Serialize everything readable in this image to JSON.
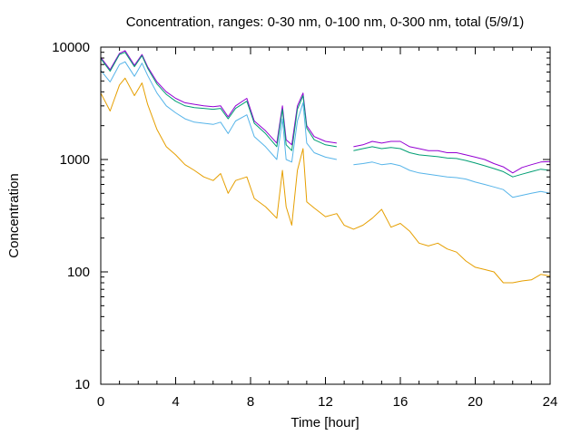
{
  "chart_data": {
    "type": "line",
    "title": "Concentration, ranges: 0-30 nm, 0-100 nm, 0-300 nm, total (5/9/1)",
    "xlabel": "Time [hour]",
    "ylabel": "Concentration",
    "xlim": [
      0,
      24
    ],
    "ylim": [
      10,
      10000
    ],
    "yscale": "log",
    "grid": false,
    "legend": "none",
    "x_ticks": [
      "0",
      "4",
      "8",
      "12",
      "16",
      "20",
      "24"
    ],
    "y_ticks": [
      "10",
      "100",
      "1000",
      "10000"
    ],
    "x": [
      0,
      0.5,
      1.0,
      1.3,
      1.8,
      2.2,
      2.5,
      3.0,
      3.5,
      4.0,
      4.5,
      5.0,
      5.5,
      6.0,
      6.4,
      6.8,
      7.2,
      7.8,
      8.2,
      8.8,
      9.4,
      9.7,
      9.9,
      10.2,
      10.5,
      10.8,
      11.0,
      11.4,
      12.0,
      12.6,
      13.0,
      13.5,
      14.0,
      14.5,
      15.0,
      15.5,
      16.0,
      16.5,
      17.0,
      17.5,
      18.0,
      18.5,
      19.0,
      19.5,
      20.0,
      20.5,
      21.0,
      21.5,
      22.0,
      22.5,
      23.0,
      23.5,
      24.0
    ],
    "series": [
      {
        "name": "",
        "color": "#9400d3",
        "values": [
          8100,
          6300,
          8800,
          9300,
          6900,
          8600,
          6700,
          4900,
          4000,
          3500,
          3200,
          3100,
          3000,
          2950,
          3000,
          2400,
          3000,
          3500,
          2200,
          1800,
          1400,
          3000,
          1500,
          1350,
          3000,
          3900,
          2000,
          1600,
          1450,
          1400,
          null,
          1300,
          1350,
          1450,
          1400,
          1450,
          1450,
          1300,
          1250,
          1200,
          1200,
          1150,
          1150,
          1100,
          1050,
          1000,
          920,
          860,
          760,
          850,
          900,
          950,
          960
        ]
      },
      {
        "name": "",
        "color": "#009e73",
        "values": [
          7900,
          6100,
          8600,
          9000,
          6700,
          8400,
          6500,
          4700,
          3800,
          3300,
          3000,
          2900,
          2850,
          2800,
          2850,
          2300,
          2850,
          3300,
          2100,
          1700,
          1300,
          2800,
          1350,
          1200,
          2800,
          3700,
          1900,
          1500,
          1350,
          1300,
          null,
          1200,
          1250,
          1300,
          1250,
          1280,
          1250,
          1150,
          1100,
          1080,
          1060,
          1030,
          1020,
          980,
          930,
          880,
          830,
          780,
          700,
          740,
          780,
          820,
          800
        ]
      },
      {
        "name": "",
        "color": "#56b4e9",
        "values": [
          6200,
          4900,
          7000,
          7400,
          5500,
          7200,
          5600,
          3900,
          3000,
          2600,
          2300,
          2150,
          2100,
          2050,
          2150,
          1700,
          2200,
          2500,
          1600,
          1300,
          1000,
          2300,
          1000,
          950,
          2200,
          3200,
          1400,
          1150,
          1050,
          1000,
          null,
          900,
          920,
          950,
          900,
          920,
          880,
          800,
          760,
          740,
          720,
          700,
          690,
          670,
          630,
          600,
          570,
          540,
          460,
          480,
          500,
          520,
          500
        ]
      },
      {
        "name": "",
        "color": "#e69f00",
        "values": [
          3900,
          2700,
          4600,
          5300,
          3700,
          4800,
          3100,
          1850,
          1300,
          1100,
          900,
          800,
          700,
          650,
          750,
          500,
          650,
          700,
          450,
          380,
          300,
          800,
          380,
          260,
          800,
          1250,
          420,
          370,
          310,
          330,
          260,
          240,
          260,
          300,
          360,
          250,
          270,
          230,
          180,
          170,
          180,
          160,
          150,
          125,
          110,
          105,
          100,
          80,
          80,
          83,
          85,
          95,
          92
        ]
      }
    ]
  }
}
